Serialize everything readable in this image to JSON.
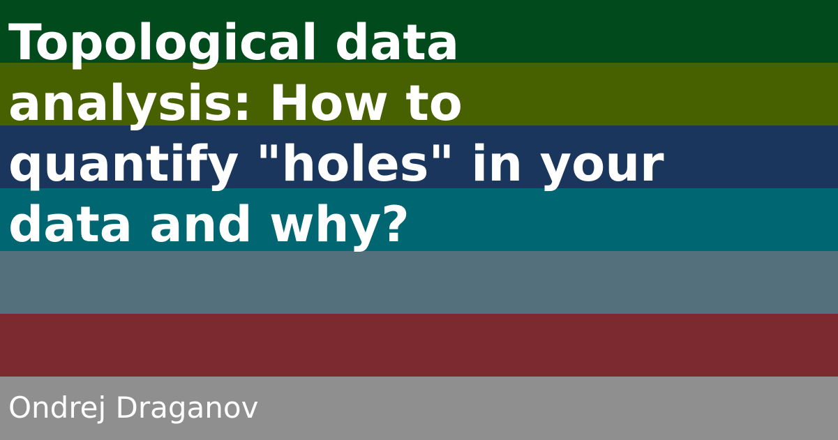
{
  "card": {
    "title": "Topological data analysis: How to quantify \"holes\" in your data and why?",
    "author": "Ondrej Draganov"
  },
  "colors": {
    "stripes": [
      "#004a1c",
      "#476000",
      "#1b365d",
      "#006671",
      "#53707c",
      "#7c2a30",
      "#8f8f8f"
    ],
    "text": "#ffffff"
  }
}
